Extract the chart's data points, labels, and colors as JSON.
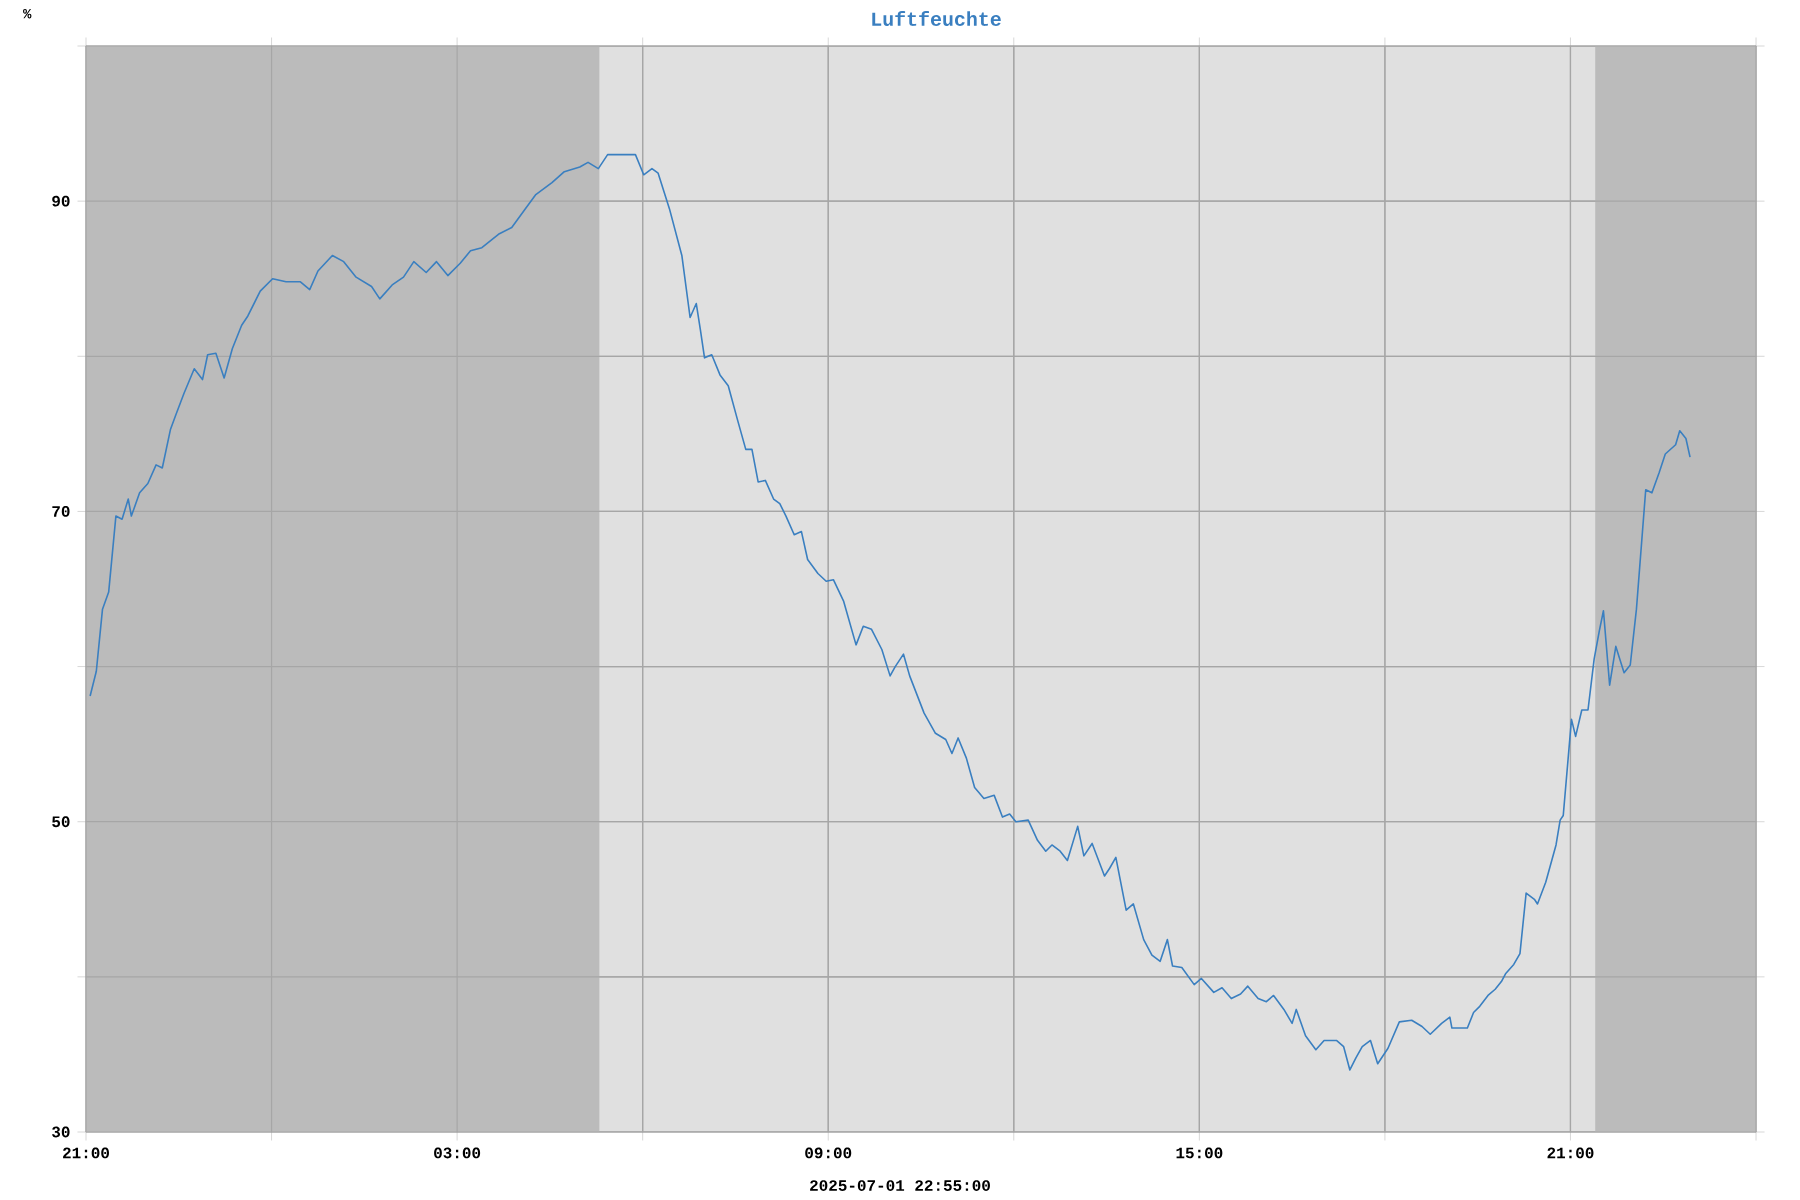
{
  "chart_data": {
    "type": "line",
    "title": "Luftfeuchte",
    "ylabel": "%",
    "annotations": [
      "2025-07-01 22:55:00"
    ],
    "xlim": [
      "2025-06-30T21:00",
      "2025-07-02T00:00"
    ],
    "ylim": [
      30,
      100
    ],
    "xticks": [
      {
        "value": "2025-06-30T21:00",
        "label": "21:00"
      },
      {
        "value": "2025-07-01T00:00",
        "label": null
      },
      {
        "value": "2025-07-01T03:00",
        "label": "03:00"
      },
      {
        "value": "2025-07-01T06:00",
        "label": null
      },
      {
        "value": "2025-07-01T09:00",
        "label": "09:00"
      },
      {
        "value": "2025-07-01T12:00",
        "label": null
      },
      {
        "value": "2025-07-01T15:00",
        "label": "15:00"
      },
      {
        "value": "2025-07-01T18:00",
        "label": null
      },
      {
        "value": "2025-07-01T21:00",
        "label": "21:00"
      },
      {
        "value": "2025-07-02T00:00",
        "label": null
      }
    ],
    "yticks": [
      30,
      {
        "value": 40,
        "label": null
      },
      50,
      {
        "value": 60,
        "label": null
      },
      70,
      {
        "value": 80,
        "label": null
      },
      90,
      {
        "value": 100,
        "label": null
      }
    ],
    "grid": true,
    "marker": "none",
    "line_style": "solid",
    "bands": [
      {
        "axis": "x",
        "from": "2025-06-30T21:00",
        "to": "2025-07-01T05:18",
        "color": "#bbbbbb"
      },
      {
        "axis": "x",
        "from": "2025-07-01T21:24",
        "to": "2025-07-02T00:00",
        "color": "#bbbbbb"
      }
    ],
    "series": [
      {
        "color": "#3a7fc0",
        "x": [
          "2025-06-30T21:04",
          "2025-06-30T21:10",
          "2025-06-30T21:16",
          "2025-06-30T21:22",
          "2025-06-30T21:29",
          "2025-06-30T21:35",
          "2025-06-30T21:41",
          "2025-06-30T21:44",
          "2025-06-30T21:52",
          "2025-06-30T22:00",
          "2025-06-30T22:08",
          "2025-06-30T22:14",
          "2025-06-30T22:22",
          "2025-06-30T22:27",
          "2025-06-30T22:35",
          "2025-06-30T22:45",
          "2025-06-30T22:53",
          "2025-06-30T22:58",
          "2025-06-30T23:06",
          "2025-06-30T23:14",
          "2025-06-30T23:22",
          "2025-06-30T23:31",
          "2025-06-30T23:37",
          "2025-06-30T23:49",
          "2025-07-01T00:01",
          "2025-07-01T00:14",
          "2025-07-01T00:28",
          "2025-07-01T00:37",
          "2025-07-01T00:45",
          "2025-07-01T00:59",
          "2025-07-01T01:10",
          "2025-07-01T01:22",
          "2025-07-01T01:37",
          "2025-07-01T01:45",
          "2025-07-01T01:57",
          "2025-07-01T02:08",
          "2025-07-01T02:18",
          "2025-07-01T02:30",
          "2025-07-01T02:40",
          "2025-07-01T02:51",
          "2025-07-01T03:03",
          "2025-07-01T03:13",
          "2025-07-01T03:24",
          "2025-07-01T03:41",
          "2025-07-01T03:53",
          "2025-07-01T04:05",
          "2025-07-01T04:16",
          "2025-07-01T04:32",
          "2025-07-01T04:44",
          "2025-07-01T04:59",
          "2025-07-01T05:07",
          "2025-07-01T05:17",
          "2025-07-01T05:26",
          "2025-07-01T05:42",
          "2025-07-01T05:53",
          "2025-07-01T06:01",
          "2025-07-01T06:09",
          "2025-07-01T06:15",
          "2025-07-01T06:26",
          "2025-07-01T06:38",
          "2025-07-01T06:46",
          "2025-07-01T06:52",
          "2025-07-01T06:56",
          "2025-07-01T07:00",
          "2025-07-01T07:07",
          "2025-07-01T07:15",
          "2025-07-01T07:23",
          "2025-07-01T07:32",
          "2025-07-01T07:40",
          "2025-07-01T07:46",
          "2025-07-01T07:52",
          "2025-07-01T07:59",
          "2025-07-01T08:07",
          "2025-07-01T08:13",
          "2025-07-01T08:19",
          "2025-07-01T08:27",
          "2025-07-01T08:34",
          "2025-07-01T08:40",
          "2025-07-01T08:50",
          "2025-07-01T08:58",
          "2025-07-01T09:05",
          "2025-07-01T09:15",
          "2025-07-01T09:27",
          "2025-07-01T09:34",
          "2025-07-01T09:42",
          "2025-07-01T09:52",
          "2025-07-01T10:00",
          "2025-07-01T10:05",
          "2025-07-01T10:13",
          "2025-07-01T10:19",
          "2025-07-01T10:33",
          "2025-07-01T10:44",
          "2025-07-01T10:54",
          "2025-07-01T11:00",
          "2025-07-01T11:06",
          "2025-07-01T11:14",
          "2025-07-01T11:22",
          "2025-07-01T11:31",
          "2025-07-01T11:41",
          "2025-07-01T11:49",
          "2025-07-01T11:56",
          "2025-07-01T12:02",
          "2025-07-01T12:14",
          "2025-07-01T12:23",
          "2025-07-01T12:31",
          "2025-07-01T12:37",
          "2025-07-01T12:45",
          "2025-07-01T12:52",
          "2025-07-01T13:02",
          "2025-07-01T13:08",
          "2025-07-01T13:16",
          "2025-07-01T13:28",
          "2025-07-01T13:33",
          "2025-07-01T13:39",
          "2025-07-01T13:49",
          "2025-07-01T13:56",
          "2025-07-01T14:06",
          "2025-07-01T14:14",
          "2025-07-01T14:22",
          "2025-07-01T14:29",
          "2025-07-01T14:34",
          "2025-07-01T14:43",
          "2025-07-01T14:55",
          "2025-07-01T15:02",
          "2025-07-01T15:14",
          "2025-07-01T15:22",
          "2025-07-01T15:31",
          "2025-07-01T15:40",
          "2025-07-01T15:47",
          "2025-07-01T15:57",
          "2025-07-01T16:05",
          "2025-07-01T16:12",
          "2025-07-01T16:22",
          "2025-07-01T16:30",
          "2025-07-01T16:34",
          "2025-07-01T16:43",
          "2025-07-01T16:53",
          "2025-07-01T17:01",
          "2025-07-01T17:13",
          "2025-07-01T17:20",
          "2025-07-01T17:26",
          "2025-07-01T17:32",
          "2025-07-01T17:38",
          "2025-07-01T17:46",
          "2025-07-01T17:53",
          "2025-07-01T18:03",
          "2025-07-01T18:14",
          "2025-07-01T18:26",
          "2025-07-01T18:36",
          "2025-07-01T18:44",
          "2025-07-01T18:55",
          "2025-07-01T19:03",
          "2025-07-01T19:05",
          "2025-07-01T19:14",
          "2025-07-01T19:20",
          "2025-07-01T19:26",
          "2025-07-01T19:32",
          "2025-07-01T19:40",
          "2025-07-01T19:47",
          "2025-07-01T19:53",
          "2025-07-01T19:57",
          "2025-07-01T20:05",
          "2025-07-01T20:11",
          "2025-07-01T20:17",
          "2025-07-01T20:25",
          "2025-07-01T20:28",
          "2025-07-01T20:36",
          "2025-07-01T20:46",
          "2025-07-01T20:50",
          "2025-07-01T20:53",
          "2025-07-01T21:01",
          "2025-07-01T21:05",
          "2025-07-01T21:11",
          "2025-07-01T21:17",
          "2025-07-01T21:23",
          "2025-07-01T21:28",
          "2025-07-01T21:32",
          "2025-07-01T21:38",
          "2025-07-01T21:44",
          "2025-07-01T21:52",
          "2025-07-01T21:58",
          "2025-07-01T22:04",
          "2025-07-01T22:13",
          "2025-07-01T22:19",
          "2025-07-01T22:26",
          "2025-07-01T22:32",
          "2025-07-01T22:42",
          "2025-07-01T22:46",
          "2025-07-01T22:52",
          "2025-07-01T22:56"
        ],
        "values": [
          58.1,
          59.7,
          63.7,
          64.8,
          69.7,
          69.5,
          70.8,
          69.7,
          71.2,
          71.8,
          73.0,
          72.8,
          75.3,
          76.2,
          77.6,
          79.2,
          78.5,
          80.1,
          80.2,
          78.6,
          80.5,
          82.0,
          82.6,
          84.2,
          85.0,
          84.8,
          84.8,
          84.3,
          85.5,
          86.5,
          86.1,
          85.1,
          84.5,
          83.7,
          84.6,
          85.1,
          86.1,
          85.4,
          86.1,
          85.2,
          86.0,
          86.8,
          87.0,
          87.9,
          88.3,
          89.4,
          90.4,
          91.2,
          91.9,
          92.2,
          92.5,
          92.1,
          93.0,
          93.0,
          93.0,
          91.7,
          92.1,
          91.8,
          89.5,
          86.5,
          82.5,
          83.4,
          81.7,
          79.9,
          80.1,
          78.8,
          78.1,
          75.9,
          74.0,
          74.0,
          71.9,
          72.0,
          70.8,
          70.5,
          69.7,
          68.5,
          68.7,
          66.9,
          66.0,
          65.5,
          65.6,
          64.2,
          61.4,
          62.6,
          62.4,
          61.1,
          59.4,
          60.0,
          60.8,
          59.4,
          57.0,
          55.7,
          55.3,
          54.4,
          55.4,
          54.1,
          52.2,
          51.5,
          51.7,
          50.3,
          50.5,
          50.0,
          50.1,
          48.8,
          48.1,
          48.5,
          48.1,
          47.5,
          49.7,
          47.8,
          48.6,
          46.5,
          47.0,
          47.7,
          44.3,
          44.7,
          42.4,
          41.4,
          41.0,
          42.4,
          40.7,
          40.6,
          39.5,
          39.9,
          39.0,
          39.3,
          38.6,
          38.9,
          39.4,
          38.6,
          38.4,
          38.8,
          37.9,
          37.0,
          37.9,
          36.2,
          35.3,
          35.9,
          35.9,
          35.5,
          34.0,
          34.8,
          35.5,
          35.9,
          34.4,
          35.4,
          37.1,
          37.2,
          36.8,
          36.3,
          37.0,
          37.4,
          36.7,
          36.7,
          36.7,
          37.7,
          38.1,
          38.8,
          39.2,
          39.7,
          40.2,
          40.8,
          41.5,
          45.4,
          45.0,
          44.7,
          46.1,
          48.5,
          50.1,
          50.4,
          56.6,
          55.5,
          57.2,
          57.2,
          60.5,
          62.3,
          63.6,
          58.8,
          61.3,
          59.6,
          60.1,
          63.7,
          71.4,
          71.2,
          72.5,
          73.7,
          74.3,
          75.2,
          74.7,
          73.5
        ]
      }
    ]
  }
}
